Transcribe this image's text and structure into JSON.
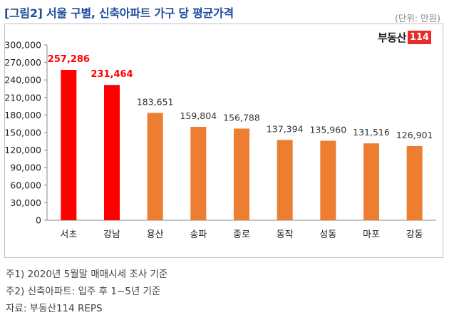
{
  "title": "[그림2] 서울 구별, 신축아파트 가구 당 평균가격",
  "unit": "(단위: 만원)",
  "logo": {
    "text": "부동산",
    "box": "114"
  },
  "colors": {
    "highlight": "#ff0000",
    "bar": "#ed7d31",
    "highlight_label": "#ff0000",
    "label": "#333333"
  },
  "chart_data": {
    "type": "bar",
    "categories": [
      "서초",
      "강남",
      "용산",
      "송파",
      "종로",
      "동작",
      "성동",
      "마포",
      "강동"
    ],
    "values": [
      257286,
      231464,
      183651,
      159804,
      156788,
      137394,
      135960,
      131516,
      126901
    ],
    "data_labels": [
      "257,286",
      "231,464",
      "183,651",
      "159,804",
      "156,788",
      "137,394",
      "135,960",
      "131,516",
      "126,901"
    ],
    "highlight": [
      true,
      true,
      false,
      false,
      false,
      false,
      false,
      false,
      false
    ],
    "ylim": [
      0,
      300000
    ],
    "yticks": [
      0,
      30000,
      60000,
      90000,
      120000,
      150000,
      180000,
      210000,
      240000,
      270000,
      300000
    ],
    "ytick_labels": [
      "0",
      "30,000",
      "60,000",
      "90,000",
      "120,000",
      "150,000",
      "180,000",
      "210,000",
      "240,000",
      "270,000",
      "300,000"
    ],
    "grid": false,
    "legend": "none"
  },
  "notes": [
    "주1) 2020년 5월말 매매시세 조사 기준",
    "주2) 신축아파트: 입주 후 1~5년 기준",
    "자료: 부동산114 REPS"
  ]
}
